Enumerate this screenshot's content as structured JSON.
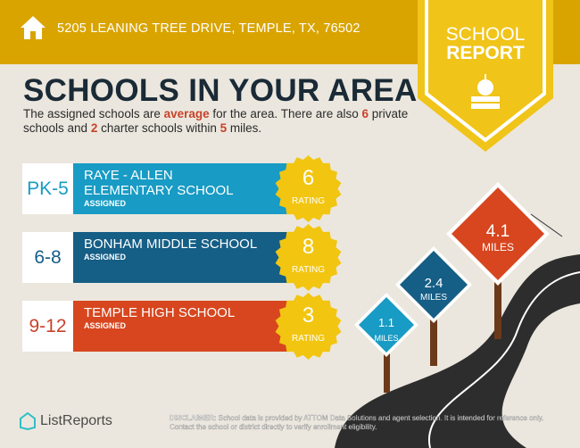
{
  "header": {
    "address": "5205 LEANING TREE DRIVE, TEMPLE, TX, 76502",
    "icon": "house-icon"
  },
  "badge": {
    "line1": "SCHOOL",
    "line2": "REPORT",
    "icon": "apple-books-icon"
  },
  "title": "SCHOOLS IN YOUR AREA",
  "summary": {
    "p1": "The assigned schools are ",
    "rating_word": "average",
    "p2": " for the area. There are also ",
    "private_count": "6",
    "p3": " private schools and ",
    "charter_count": "2",
    "p4": " charter schools within ",
    "miles": "5",
    "p5": " miles."
  },
  "schools": [
    {
      "grades": "PK-5",
      "name": "RAYE - ALLEN ELEMENTARY SCHOOL",
      "status": "ASSIGNED",
      "rating": "6",
      "rating_label": "RATING",
      "color": "#189bc4",
      "grade_color": "#189bc4"
    },
    {
      "grades": "6-8",
      "name": "BONHAM MIDDLE SCHOOL",
      "status": "ASSIGNED",
      "rating": "8",
      "rating_label": "RATING",
      "color": "#155e86",
      "grade_color": "#155e86"
    },
    {
      "grades": "9-12",
      "name": "TEMPLE HIGH SCHOOL",
      "status": "ASSIGNED",
      "rating": "3",
      "rating_label": "RATING",
      "color": "#d7461f",
      "grade_color": "#c9422a"
    }
  ],
  "distances": [
    {
      "value": "1.1",
      "unit": "MILES",
      "color": "#189bc4"
    },
    {
      "value": "2.4",
      "unit": "MILES",
      "color": "#155e86"
    },
    {
      "value": "4.1",
      "unit": "MILES",
      "color": "#d7461f"
    }
  ],
  "footer": {
    "brand": "ListReports",
    "disclaimer_label": "DISCLAIMER:",
    "disclaimer": " School data is provided by ATTOM Data Solutions and agent selection. It is intended for reference only. Contact the school or district directly to verify enrollment eligibility."
  },
  "colors": {
    "gold": "#d9a400",
    "badge": "#f0c419",
    "seal": "#f2c511",
    "background": "#ebe7de"
  }
}
